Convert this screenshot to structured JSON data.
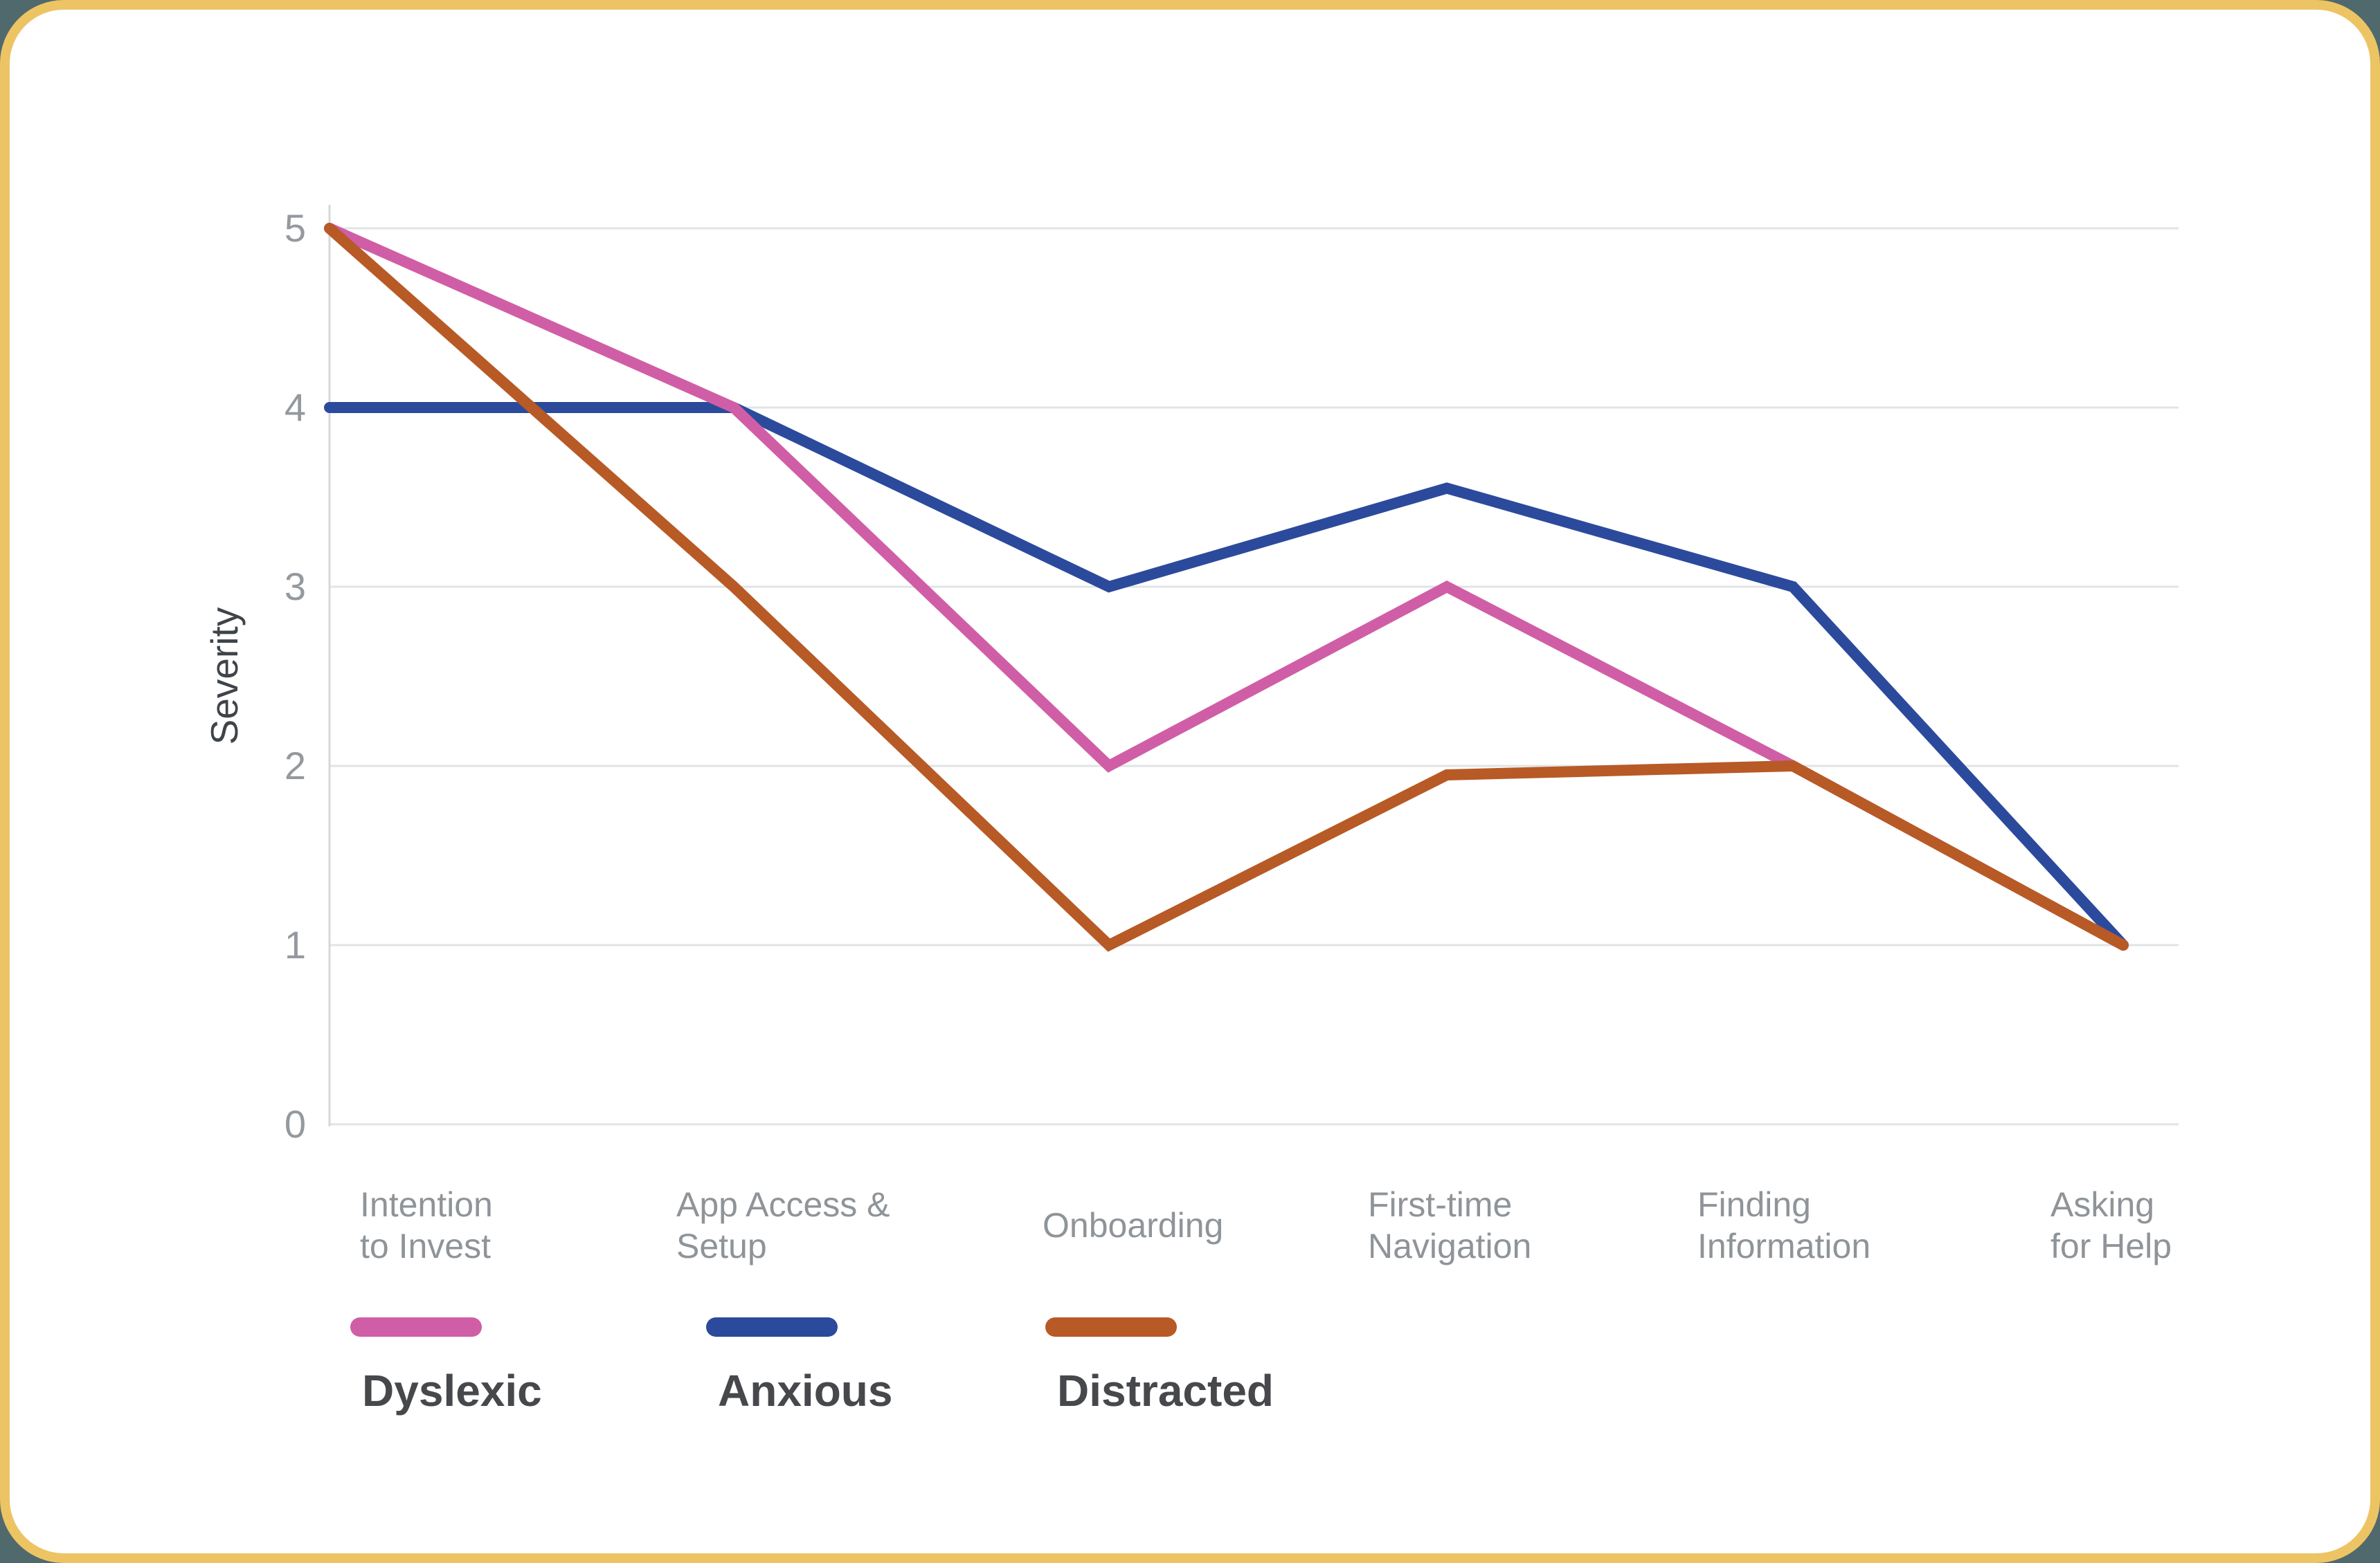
{
  "slide": {
    "background_color": "#50696d",
    "border_color": "#edc464",
    "card_color": "#ffffff"
  },
  "chart_data": {
    "type": "line",
    "title": "",
    "ylabel": "Severity",
    "ylim": [
      0,
      5
    ],
    "y_ticks": [
      "0",
      "1",
      "2",
      "3",
      "4",
      "5"
    ],
    "grid": true,
    "legend_position": "bottom-left",
    "categories": [
      "Intention\nto Invest",
      "App Access &\nSetup",
      "Onboarding",
      "First-time\nNavigation",
      "Finding\nInformation",
      "Asking\nfor Help"
    ],
    "series": [
      {
        "name": "Dyslexic",
        "color": "#d05ea6",
        "values": [
          5,
          4,
          2,
          3,
          2,
          1
        ]
      },
      {
        "name": "Anxious",
        "color": "#2c4a9c",
        "values": [
          4,
          4,
          3,
          3.55,
          3,
          1
        ]
      },
      {
        "name": "Distracted",
        "color": "#b75a26",
        "values": [
          5,
          3,
          1,
          1.95,
          2,
          1
        ]
      }
    ],
    "colors": {
      "gridline": "#e2e3e4",
      "axis_line": "#d6d8da",
      "tick_text": "#94999e",
      "category_text": "#8f9499",
      "legend_text": "#46484b"
    }
  }
}
